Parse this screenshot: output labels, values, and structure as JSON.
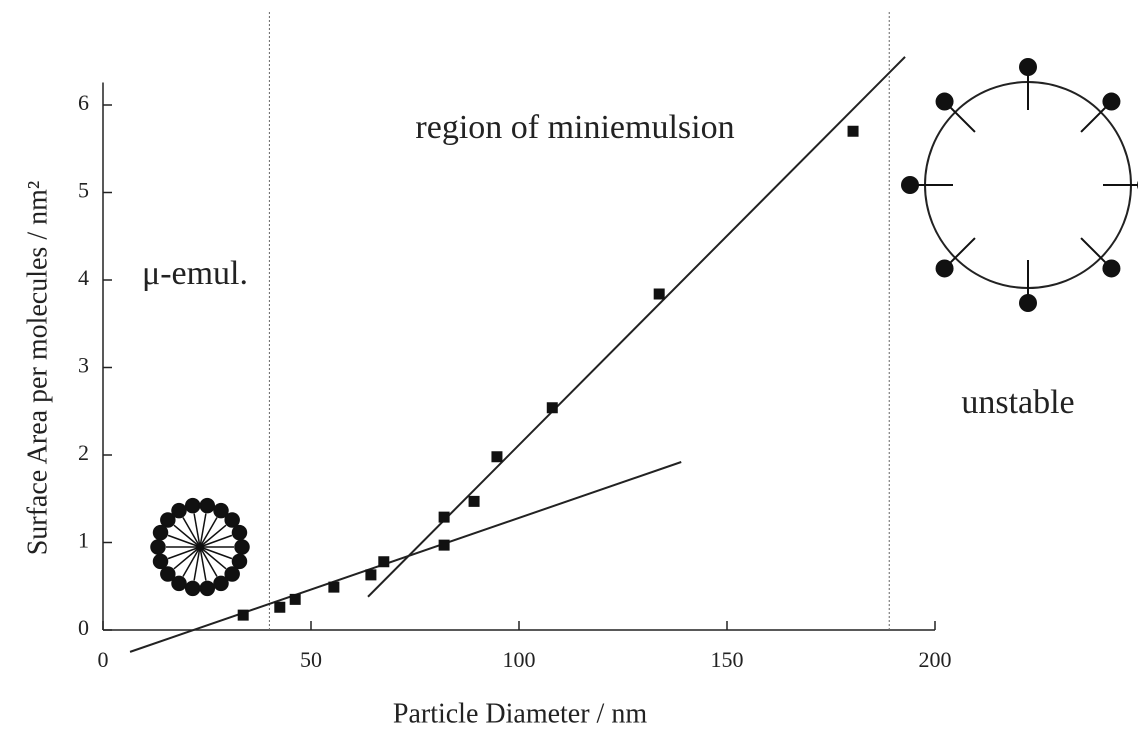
{
  "chart_data": {
    "type": "scatter",
    "xlabel": "Particle Diameter / nm",
    "ylabel": "Surface Area per molecules / nm²",
    "xlim": [
      0,
      200
    ],
    "xticks": [
      0,
      50,
      100,
      150,
      200
    ],
    "ylim": [
      0,
      6.2
    ],
    "yticks": [
      0,
      1,
      2,
      3,
      4,
      5,
      6
    ],
    "series": [
      {
        "color": "#111111",
        "x": [
          33.7,
          42.5,
          46.2,
          55.5,
          64.4,
          67.5,
          82,
          82,
          89.2,
          94.7,
          108,
          133.7,
          180.3
        ],
        "values": [
          0.17,
          0.26,
          0.35,
          0.49,
          0.63,
          0.78,
          0.97,
          1.29,
          1.47,
          1.98,
          2.54,
          3.84,
          5.7
        ]
      }
    ],
    "fit_lines": [
      {
        "x": [
          6.5,
          139
        ],
        "values": [
          -0.25,
          1.92
        ]
      },
      {
        "x": [
          63.7,
          192.8
        ],
        "values": [
          0.38,
          6.55
        ]
      }
    ],
    "region_boundaries": [
      40,
      189
    ],
    "annotations": [
      "region of miniemulsion",
      "μ-emul.",
      "unstable"
    ]
  }
}
